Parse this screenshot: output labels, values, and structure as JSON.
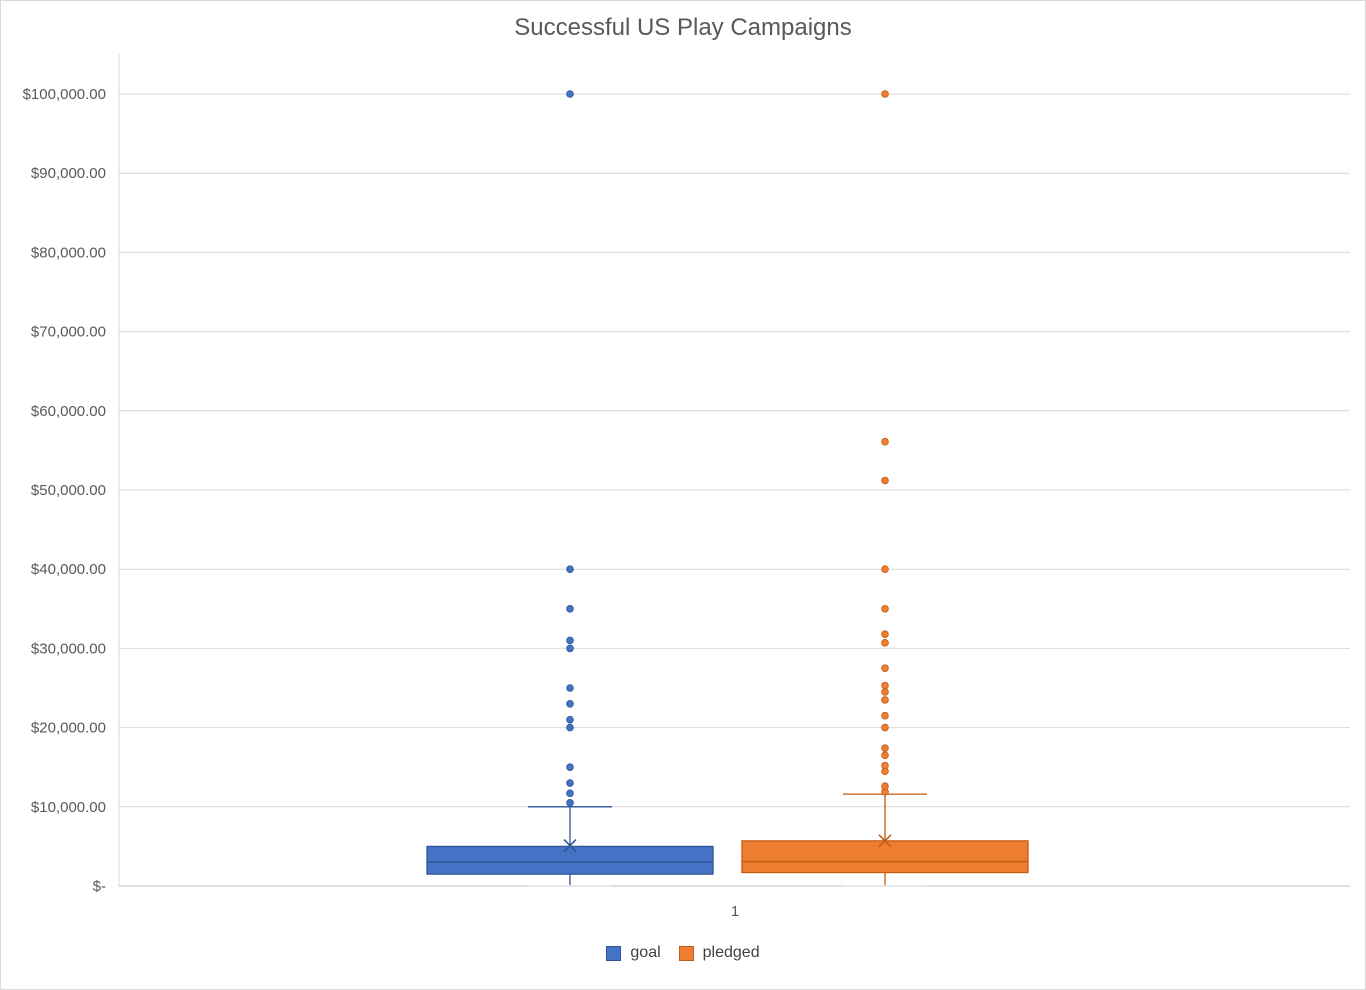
{
  "chart_data": {
    "type": "boxplot",
    "title": "Successful US Play Campaigns",
    "categories": [
      "1"
    ],
    "xlabel": "",
    "ylabel": "",
    "ylim": [
      0,
      100000
    ],
    "y_ticks": [
      0,
      10000,
      20000,
      30000,
      40000,
      50000,
      60000,
      70000,
      80000,
      90000,
      100000
    ],
    "y_tick_labels": [
      "$-",
      "$10,000.00",
      "$20,000.00",
      "$30,000.00",
      "$40,000.00",
      "$50,000.00",
      "$60,000.00",
      "$70,000.00",
      "$80,000.00",
      "$90,000.00",
      "$100,000.00"
    ],
    "grid": true,
    "legend_position": "bottom",
    "series": [
      {
        "name": "goal",
        "color": "#4472c4",
        "border": "#2f5597",
        "min": 0,
        "q1": 1500,
        "median": 3000,
        "q3": 5000,
        "max": 10000,
        "mean": 5100,
        "outliers": [
          10500,
          11700,
          13000,
          15000,
          20000,
          21000,
          23000,
          25000,
          30000,
          31000,
          35000,
          40000,
          100000
        ]
      },
      {
        "name": "pledged",
        "color": "#ed7d31",
        "border": "#c55a11",
        "min": 0,
        "q1": 1700,
        "median": 3100,
        "q3": 5700,
        "max": 11600,
        "mean": 5700,
        "outliers": [
          11900,
          12600,
          14500,
          15200,
          16500,
          17400,
          20000,
          21500,
          23500,
          24500,
          25300,
          27500,
          30700,
          31800,
          35000,
          40000,
          51200,
          56100,
          100000
        ]
      }
    ]
  }
}
